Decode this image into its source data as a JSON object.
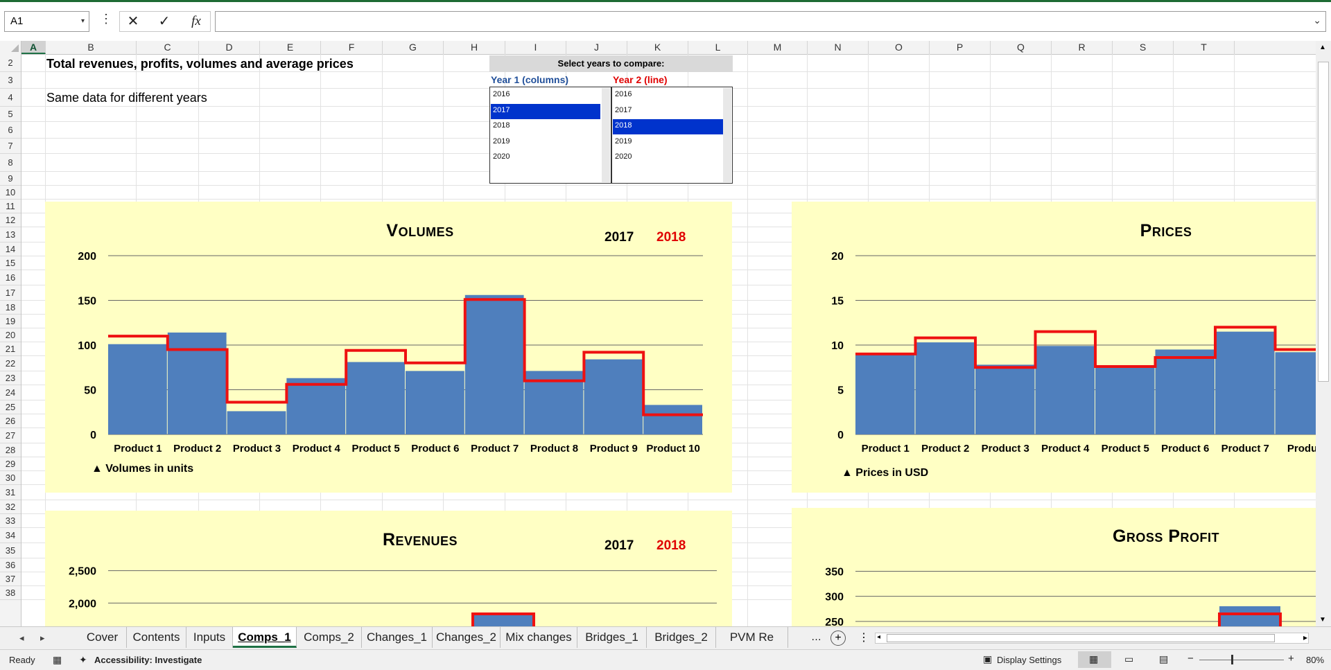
{
  "formula_bar": {
    "name_box": "A1",
    "cancel_icon": "x-icon",
    "enter_icon": "checkmark-icon",
    "function_label": "fx",
    "formula": ""
  },
  "columns": [
    "A",
    "B",
    "C",
    "D",
    "E",
    "F",
    "G",
    "H",
    "I",
    "J",
    "K",
    "L",
    "M",
    "N",
    "O",
    "P",
    "Q",
    "R",
    "S",
    "T"
  ],
  "rows": [
    "2",
    "3",
    "4",
    "5",
    "6",
    "7",
    "8",
    "9",
    "10",
    "11",
    "12",
    "13",
    "14",
    "15",
    "16",
    "17",
    "18",
    "19",
    "20",
    "21",
    "22",
    "23",
    "24",
    "25",
    "26",
    "27",
    "28",
    "29",
    "30",
    "31",
    "32",
    "33",
    "34",
    "35",
    "36",
    "37",
    "38"
  ],
  "cells": {
    "title": "Total revenues, profits, volumes and average prices",
    "subtitle": "Same data for different years"
  },
  "selector": {
    "header": "Select years to compare:",
    "year1_label": "Year 1 (columns)",
    "year2_label": "Year 2 (line)",
    "years": [
      "2016",
      "2017",
      "2018",
      "2019",
      "2020"
    ],
    "year1_selected": "2017",
    "year2_selected": "2018"
  },
  "colors": {
    "bar": "#4f7fbd",
    "line": "#ee1111",
    "chart_bg": "#ffffc4",
    "accent": "#1e7145"
  },
  "chart_data": [
    {
      "type": "bar",
      "title": "Volumes",
      "legend": [
        "2017",
        "2018"
      ],
      "note": "▲ Volumes in units",
      "categories": [
        "Product 1",
        "Product 2",
        "Product 3",
        "Product 4",
        "Product 5",
        "Product 6",
        "Product 7",
        "Product 8",
        "Product 9",
        "Product 10"
      ],
      "series": [
        {
          "name": "2017",
          "kind": "columns",
          "values": [
            101,
            114,
            26,
            63,
            81,
            71,
            156,
            71,
            84,
            33
          ]
        },
        {
          "name": "2018",
          "kind": "step-line",
          "values": [
            110,
            95,
            36,
            56,
            94,
            80,
            151,
            60,
            92,
            22
          ]
        }
      ],
      "yticks": [
        "0",
        "50",
        "100",
        "150",
        "200"
      ],
      "ylim": [
        0,
        200
      ],
      "grid": true
    },
    {
      "type": "bar",
      "title": "Prices",
      "note": "▲ Prices in USD",
      "categories": [
        "Product 1",
        "Product 2",
        "Product 3",
        "Product 4",
        "Product 5",
        "Product 6",
        "Product 7",
        "Produc"
      ],
      "series": [
        {
          "name": "2017",
          "kind": "columns",
          "values": [
            8.9,
            10.3,
            7.8,
            9.9,
            7.7,
            9.5,
            11.5,
            9.2
          ]
        },
        {
          "name": "2018",
          "kind": "step-line",
          "values": [
            9.0,
            10.8,
            7.5,
            11.5,
            7.6,
            8.6,
            12.0,
            9.5
          ]
        }
      ],
      "yticks": [
        "0",
        "5",
        "10",
        "15",
        "20"
      ],
      "ylim": [
        0,
        20
      ],
      "grid": true
    },
    {
      "type": "bar",
      "title": "Revenues",
      "legend": [
        "2017",
        "2018"
      ],
      "yticks": [
        "2,000",
        "2,500"
      ],
      "ylim": [
        1500,
        2700
      ],
      "grid": true
    },
    {
      "type": "bar",
      "title": "Gross Profit",
      "yticks": [
        "250",
        "300",
        "350"
      ],
      "ylim": [
        200,
        370
      ],
      "grid": true
    }
  ],
  "sheet_tabs": [
    "Cover",
    "Contents",
    "Inputs",
    "Comps_1",
    "Comps_2",
    "Changes_1",
    "Changes_2",
    "Mix changes",
    "Bridges_1",
    "Bridges_2",
    "PVM Re"
  ],
  "active_tab": "Comps_1",
  "status": {
    "ready": "Ready",
    "accessibility": "Accessibility: Investigate",
    "display_settings": "Display Settings",
    "zoom": "80%"
  }
}
